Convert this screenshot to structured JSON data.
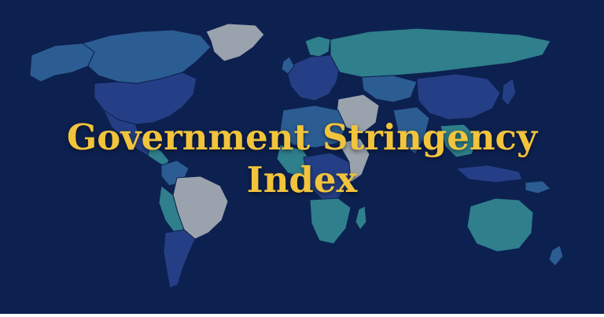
{
  "title": {
    "line1": "Government Stringency",
    "line2": "Index"
  },
  "colors": {
    "background": "#0d2150",
    "title": "#f2c43c",
    "no_data": "#9aa3ad",
    "level_low": "#2f7f8c",
    "level_mid": "#2c5d92",
    "level_high": "#253f86"
  }
}
